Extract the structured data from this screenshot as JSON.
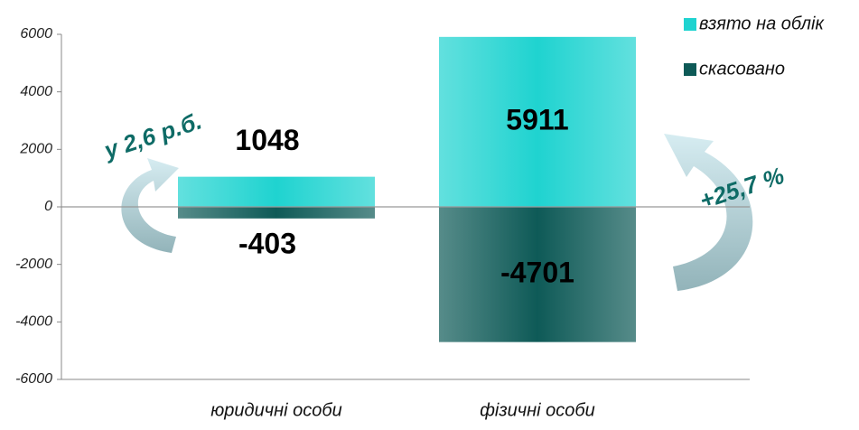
{
  "chart_data": {
    "type": "bar",
    "categories": [
      "юридичні особи",
      "фізичні особи"
    ],
    "series": [
      {
        "name": "взято на облік",
        "color": "#1fd3d0",
        "values": [
          1048,
          5911
        ]
      },
      {
        "name": "скасовано",
        "color": "#0e5a57",
        "values": [
          -403,
          -4701
        ]
      }
    ],
    "ylim": [
      -6000,
      6000
    ],
    "yticks": [
      -6000,
      -4000,
      -2000,
      0,
      2000,
      4000,
      6000
    ],
    "annotations": [
      "у 2,6 р.б.",
      "+25,7 %"
    ],
    "legend": "top-right"
  }
}
